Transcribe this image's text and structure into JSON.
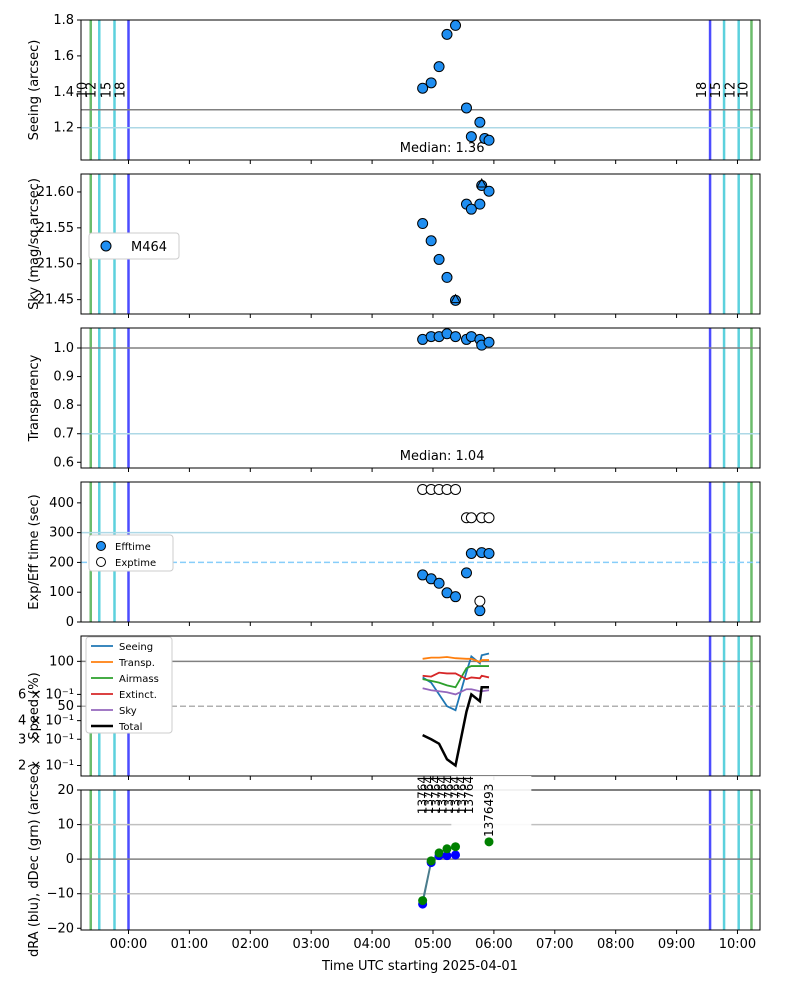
{
  "figure": {
    "xlabel": "Time UTC starting 2025-04-01",
    "x_tick_labels": [
      "00:00",
      "01:00",
      "02:00",
      "03:00",
      "04:00",
      "05:00",
      "06:00",
      "07:00",
      "08:00",
      "09:00",
      "10:00"
    ],
    "x_ticks_hours": [
      0,
      1,
      2,
      3,
      4,
      5,
      6,
      7,
      8,
      9,
      10
    ],
    "xlim_hours": [
      -0.78,
      10.37
    ]
  },
  "twilight": {
    "evening": [
      {
        "label": "10",
        "t": -0.62,
        "color": "#2ca02c"
      },
      {
        "label": "12",
        "t": -0.48,
        "color": "#17becf"
      },
      {
        "label": "15",
        "t": -0.23,
        "color": "#17becf"
      },
      {
        "label": "18",
        "t": 0.0,
        "color": "#0000ff"
      }
    ],
    "morning": [
      {
        "label": "18",
        "t": 9.55,
        "color": "#0000ff"
      },
      {
        "label": "15",
        "t": 9.78,
        "color": "#17becf"
      },
      {
        "label": "12",
        "t": 10.02,
        "color": "#17becf"
      },
      {
        "label": "10",
        "t": 10.23,
        "color": "#2ca02c"
      }
    ]
  },
  "chart_data": [
    {
      "type": "scatter",
      "ylabel": "Seeing (arcsec)",
      "ylim": [
        1.02,
        1.8
      ],
      "yticks": [
        1.2,
        1.4,
        1.6,
        1.8
      ],
      "yticklabels": [
        "1.2",
        "1.4",
        "1.6",
        "1.8"
      ],
      "hlines": [
        {
          "y": 1.3,
          "color": "#808080"
        },
        {
          "y": 1.2,
          "color": "#add8e6"
        }
      ],
      "annotation": "Median: 1.36",
      "x_hours": [
        4.83,
        4.97,
        5.1,
        5.23,
        5.37,
        5.55,
        5.63,
        5.77,
        5.85,
        5.92
      ],
      "y": [
        1.42,
        1.45,
        1.54,
        1.72,
        1.77,
        1.31,
        1.15,
        1.23,
        1.14,
        1.13
      ],
      "face_color": "#1f8ef1"
    },
    {
      "type": "scatter",
      "ylabel": "Sky (mag/sq.arcsec)",
      "ylim": [
        21.43,
        21.625
      ],
      "yticks": [
        21.45,
        21.5,
        21.55,
        21.6
      ],
      "yticklabels": [
        "21.45",
        "21.50",
        "21.55",
        "21.60"
      ],
      "legend": [
        "M464"
      ],
      "legend_position": "center-left",
      "x_hours": [
        4.83,
        4.97,
        5.1,
        5.23,
        5.37,
        5.55,
        5.63,
        5.77,
        5.8,
        5.92
      ],
      "y": [
        21.556,
        21.532,
        21.506,
        21.481,
        21.449,
        21.583,
        21.576,
        21.583,
        21.609,
        21.601
      ],
      "triangles": [
        {
          "x_hours": 5.37,
          "y": 21.45
        },
        {
          "x_hours": 5.8,
          "y": 21.611
        }
      ],
      "face_color": "#1f8ef1"
    },
    {
      "type": "scatter",
      "ylabel": "Transparency",
      "ylim": [
        0.58,
        1.07
      ],
      "yticks": [
        0.6,
        0.7,
        0.8,
        0.9,
        1.0
      ],
      "yticklabels": [
        "0.6",
        "0.7",
        "0.8",
        "0.9",
        "1.0"
      ],
      "hlines": [
        {
          "y": 1.0,
          "color": "#808080"
        },
        {
          "y": 0.7,
          "color": "#add8e6"
        }
      ],
      "annotation": "Median: 1.04",
      "x_hours": [
        4.83,
        4.97,
        5.1,
        5.23,
        5.37,
        5.55,
        5.63,
        5.77,
        5.8,
        5.92
      ],
      "y": [
        1.03,
        1.04,
        1.04,
        1.05,
        1.04,
        1.03,
        1.04,
        1.03,
        1.01,
        1.02
      ],
      "face_color": "#1f8ef1"
    },
    {
      "type": "scatter",
      "ylabel": "Exp/Eff time (sec)",
      "ylim": [
        0,
        470
      ],
      "yticks": [
        0,
        100,
        200,
        300,
        400
      ],
      "yticklabels": [
        "0",
        "100",
        "200",
        "300",
        "400"
      ],
      "hlines": [
        {
          "y": 300,
          "color": "#add8e6",
          "dash": false
        },
        {
          "y": 200,
          "color": "#87cefa",
          "dash": true
        }
      ],
      "legend": [
        "Efftime",
        "Exptime"
      ],
      "legend_position": "center-left",
      "series": [
        {
          "name": "Efftime",
          "x_hours": [
            4.83,
            4.97,
            5.1,
            5.23,
            5.37,
            5.55,
            5.63,
            5.77,
            5.8,
            5.92
          ],
          "y": [
            158,
            145,
            130,
            98,
            85,
            165,
            230,
            38,
            233,
            230
          ],
          "face_color": "#1f8ef1"
        },
        {
          "name": "Exptime",
          "x_hours": [
            4.83,
            4.97,
            5.1,
            5.23,
            5.37,
            5.55,
            5.63,
            5.77,
            5.8,
            5.92
          ],
          "y": [
            445,
            445,
            445,
            445,
            445,
            350,
            350,
            70,
            350,
            350
          ],
          "face_color": "#ffffff"
        }
      ]
    },
    {
      "type": "line",
      "ylabel": "Speed (%)",
      "yscale": "log",
      "ylim": [
        0.17,
        1.48
      ],
      "yticks": [
        0.2,
        0.3,
        0.4,
        0.5,
        0.6,
        1.0
      ],
      "yticklabels": [
        "2 × 10⁻¹",
        "3 × 10⁻¹",
        "4 × 10⁻¹",
        "50",
        "6 × 10⁻¹",
        "100"
      ],
      "hlines": [
        {
          "y": 1.0,
          "color": "#808080",
          "dash": false
        },
        {
          "y": 0.5,
          "color": "#b0b0b0",
          "dash": true
        }
      ],
      "legend": [
        "Seeing",
        "Transp.",
        "Airmass",
        "Extinct.",
        "Sky",
        "Total"
      ],
      "legend_position": "upper-left",
      "x_hours": [
        4.83,
        4.97,
        5.1,
        5.23,
        5.37,
        5.55,
        5.63,
        5.77,
        5.8,
        5.92
      ],
      "series": [
        {
          "name": "Seeing",
          "color": "#1f77b4",
          "y": [
            0.78,
            0.72,
            0.6,
            0.5,
            0.47,
            0.85,
            1.08,
            0.97,
            1.1,
            1.13
          ]
        },
        {
          "name": "Transp.",
          "color": "#ff7f0e",
          "y": [
            1.04,
            1.06,
            1.06,
            1.07,
            1.05,
            1.04,
            1.04,
            0.99,
            1.02,
            1.02
          ]
        },
        {
          "name": "Airmass",
          "color": "#2ca02c",
          "y": [
            0.76,
            0.74,
            0.72,
            0.69,
            0.67,
            0.9,
            0.93,
            0.93,
            0.93,
            0.93
          ]
        },
        {
          "name": "Extinct.",
          "color": "#d62728",
          "y": [
            0.8,
            0.79,
            0.84,
            0.83,
            0.83,
            0.76,
            0.78,
            0.77,
            0.8,
            0.78
          ]
        },
        {
          "name": "Sky",
          "color": "#9467bd",
          "y": [
            0.66,
            0.64,
            0.63,
            0.62,
            0.6,
            0.65,
            0.65,
            0.63,
            0.63,
            0.64
          ]
        },
        {
          "name": "Total",
          "color": "#000000",
          "y": [
            0.32,
            0.3,
            0.28,
            0.22,
            0.2,
            0.46,
            0.6,
            0.54,
            0.67,
            0.67
          ]
        }
      ]
    },
    {
      "type": "scatter",
      "ylabel": "dRA (blu), dDec (grn) (arcsec)",
      "ylim": [
        -20.5,
        20
      ],
      "yticks": [
        -20,
        -10,
        0,
        10,
        20
      ],
      "yticklabels": [
        "−20",
        "−10",
        "0",
        "10",
        "20"
      ],
      "hlines": [
        {
          "y": 0,
          "color": "#808080"
        },
        {
          "y": 10,
          "color": "#c0c0c0"
        },
        {
          "y": -10,
          "color": "#c0c0c0"
        }
      ],
      "exposure_id_partial": "13764",
      "exposure_id_full": "1376493",
      "x_hours": [
        4.83,
        4.97,
        5.1,
        5.23,
        5.37,
        5.92
      ],
      "dra": [
        -13,
        -1,
        1,
        1,
        1.2,
        null
      ],
      "ddec": [
        -12,
        -0.5,
        1.8,
        3,
        3.6,
        5
      ],
      "dra_color": "#0000ff",
      "ddec_color": "#008000",
      "line_color": "#4a7c8c"
    }
  ]
}
